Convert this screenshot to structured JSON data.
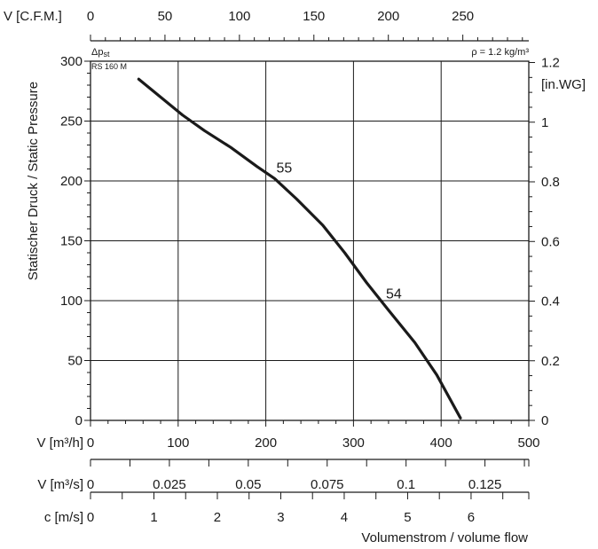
{
  "chart_data": {
    "type": "line",
    "title": "",
    "ylabel": "Statischer Druck / Static Pressure",
    "xlabel": "Volumenstrom / volume flow",
    "pressure_symbol": "Δp",
    "pressure_symbol_sub": "st",
    "model": "RS 160 M",
    "density_note": "ρ = 1.2 kg/m³",
    "right_axis_unit": "[in.WG]",
    "xlim": [
      0,
      500
    ],
    "ylim": [
      0,
      300
    ],
    "grid": true,
    "series": [
      {
        "name": "",
        "x": [
          55,
          80,
          105,
          130,
          160,
          190,
          210,
          235,
          265,
          290,
          315,
          340,
          370,
          395,
          410,
          422
        ],
        "y": [
          285,
          270,
          255,
          242,
          228,
          212,
          202,
          185,
          163,
          140,
          115,
          92,
          65,
          38,
          18,
          2
        ]
      }
    ],
    "annotations": [
      {
        "text": "55",
        "x": 212,
        "y": 207
      },
      {
        "text": "54",
        "x": 337,
        "y": 102
      }
    ],
    "top_axis": {
      "label": "V [C.F.M.]",
      "min": 0,
      "max": 294.3,
      "ticks": [
        "0",
        "50",
        "100",
        "150",
        "200",
        "250"
      ],
      "tick_values": [
        0,
        50,
        100,
        150,
        200,
        250
      ],
      "minor_step": 10
    },
    "left_axis": {
      "ticks": [
        "0",
        "50",
        "100",
        "150",
        "200",
        "250",
        "300"
      ],
      "tick_values": [
        0,
        50,
        100,
        150,
        200,
        250,
        300
      ]
    },
    "right_axis": {
      "min": 0,
      "max": 1.2045,
      "ticks": [
        "0",
        "0.2",
        "0.4",
        "0.6",
        "0.8",
        "1",
        "1.2"
      ],
      "tick_values": [
        0,
        0.2,
        0.4,
        0.6,
        0.8,
        1.0,
        1.2
      ]
    },
    "bottom_axes": [
      {
        "label": "V [m³/h]",
        "min": 0,
        "max": 500,
        "ticks": [
          "0",
          "100",
          "200",
          "300",
          "400",
          "500"
        ],
        "tick_values": [
          0,
          100,
          200,
          300,
          400,
          500
        ],
        "minor_step": 20
      },
      {
        "label": "V [m³/s]",
        "min": 0,
        "max": 0.13889,
        "ticks": [
          "0",
          "0.025",
          "0.05",
          "0.075",
          "0.1",
          "0.125"
        ],
        "tick_values": [
          0,
          0.025,
          0.05,
          0.075,
          0.1,
          0.125
        ],
        "minor_step": 0.0125
      },
      {
        "label": "c [m/s]",
        "min": 0,
        "max": 6.91,
        "ticks": [
          "0",
          "1",
          "2",
          "3",
          "4",
          "5",
          "6"
        ],
        "tick_values": [
          0,
          1,
          2,
          3,
          4,
          5,
          6
        ],
        "minor_step": 0.5
      }
    ]
  }
}
